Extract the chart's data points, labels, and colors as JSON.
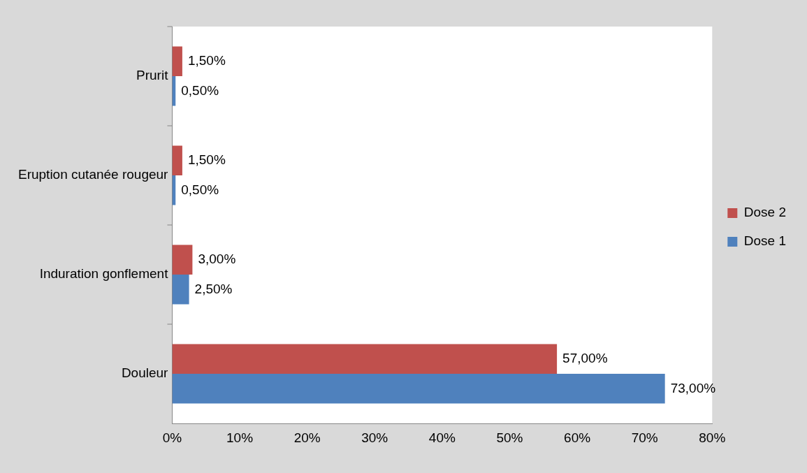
{
  "chart_data": {
    "type": "bar",
    "orientation": "horizontal",
    "categories": [
      "Prurit",
      "Eruption cutanée rougeur",
      "Induration gonflement",
      "Douleur"
    ],
    "series": [
      {
        "name": "Dose 2",
        "color": "#c0504d",
        "values": [
          1.5,
          1.5,
          3,
          57
        ],
        "value_labels": [
          "1,50%",
          "1,50%",
          "3,00%",
          "57,00%"
        ]
      },
      {
        "name": "Dose 1",
        "color": "#4f81bd",
        "values": [
          0.5,
          0.5,
          2.5,
          73
        ],
        "value_labels": [
          "0,50%",
          "0,50%",
          "2,50%",
          "73,00%"
        ]
      }
    ],
    "xlim": [
      0,
      80
    ],
    "xticks": [
      {
        "value": 0,
        "label": "0%"
      },
      {
        "value": 10,
        "label": "10%"
      },
      {
        "value": 20,
        "label": "20%"
      },
      {
        "value": 30,
        "label": "30%"
      },
      {
        "value": 40,
        "label": "40%"
      },
      {
        "value": 50,
        "label": "50%"
      },
      {
        "value": 60,
        "label": "60%"
      },
      {
        "value": 70,
        "label": "70%"
      },
      {
        "value": 80,
        "label": "80%"
      }
    ],
    "grid": false,
    "legend": "right"
  }
}
